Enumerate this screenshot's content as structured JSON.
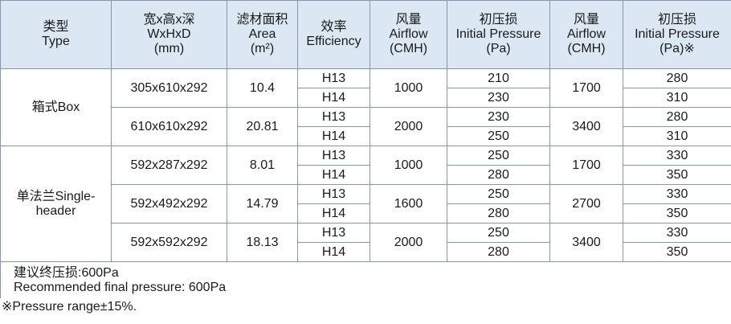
{
  "table": {
    "header": [
      [
        "类型",
        "Type"
      ],
      [
        "宽x高x深",
        "WxHxD",
        "(mm)"
      ],
      [
        "滤材面积",
        "Area",
        "(m²)"
      ],
      [
        "效率",
        "Efficiency"
      ],
      [
        "风量",
        "Airflow",
        "(CMH)"
      ],
      [
        "初压损",
        "Initial Pressure",
        "(Pa)"
      ],
      [
        "风量",
        "Airflow",
        "(CMH)"
      ],
      [
        "初压损",
        "Initial Pressure",
        "(Pa)※"
      ]
    ],
    "groups": [
      {
        "type": [
          "箱式",
          "Box"
        ],
        "models": [
          {
            "size": "305x610x292",
            "area": "10.4",
            "airflow1": "1000",
            "airflow2": "1700",
            "rows": [
              {
                "efficiency": "H13",
                "pressure1": "210",
                "pressure2": "280"
              },
              {
                "efficiency": "H14",
                "pressure1": "230",
                "pressure2": "310"
              }
            ]
          },
          {
            "size": "610x610x292",
            "area": "20.81",
            "airflow1": "2000",
            "airflow2": "3400",
            "rows": [
              {
                "efficiency": "H13",
                "pressure1": "230",
                "pressure2": "280"
              },
              {
                "efficiency": "H14",
                "pressure1": "250",
                "pressure2": "310"
              }
            ]
          }
        ]
      },
      {
        "type": [
          "单法兰",
          "Single-header"
        ],
        "models": [
          {
            "size": "592x287x292",
            "area": "8.01",
            "airflow1": "1000",
            "airflow2": "1700",
            "rows": [
              {
                "efficiency": "H13",
                "pressure1": "250",
                "pressure2": "330"
              },
              {
                "efficiency": "H14",
                "pressure1": "280",
                "pressure2": "350"
              }
            ]
          },
          {
            "size": "592x492x292",
            "area": "14.79",
            "airflow1": "1600",
            "airflow2": "2700",
            "rows": [
              {
                "efficiency": "H13",
                "pressure1": "250",
                "pressure2": "330"
              },
              {
                "efficiency": "H14",
                "pressure1": "280",
                "pressure2": "350"
              }
            ]
          },
          {
            "size": "592x592x292",
            "area": "18.13",
            "airflow1": "2000",
            "airflow2": "3400",
            "rows": [
              {
                "efficiency": "H13",
                "pressure1": "250",
                "pressure2": "330"
              },
              {
                "efficiency": "H14",
                "pressure1": "280",
                "pressure2": "350"
              }
            ]
          }
        ]
      }
    ],
    "notes": [
      "建议终压损:600Pa",
      "Recommended final pressure: 600Pa"
    ]
  },
  "footnote": "※Pressure  range±15%."
}
